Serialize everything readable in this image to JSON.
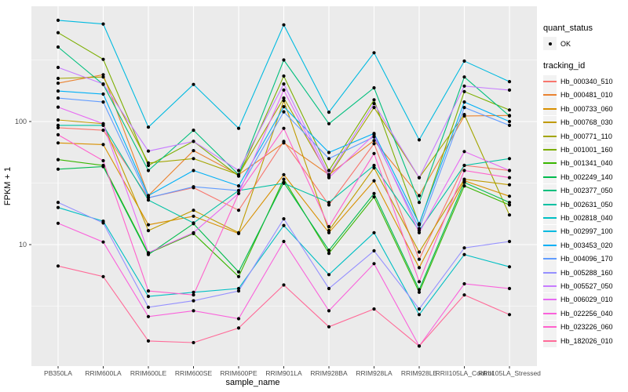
{
  "legend": {
    "quant_status_title": "quant_status",
    "quant_status_items": [
      {
        "label": "OK",
        "marker": "black-point"
      }
    ],
    "tracking_title": "tracking_id"
  },
  "style": {
    "panel_bg": "#EBEBEB",
    "grid_color": "#FFFFFF",
    "tick_label_color": "#4D4D4D",
    "axis_title_color": "#000000",
    "point_color": "#000000",
    "legend_key_bg": "#F2F2F2"
  },
  "chart_data": {
    "type": "line",
    "title": "",
    "xlabel": "sample_name",
    "ylabel": "FPKM + 1",
    "y_scale": "log10",
    "ylim": [
      1.03,
      863
    ],
    "y_major_ticks": [
      10,
      100
    ],
    "y_minor_gridlines": [
      3.162,
      31.62,
      316.2
    ],
    "grid": "on",
    "legend_position": "right",
    "marker": "black-point",
    "categories": [
      "PB350LA",
      "RRIM600LA",
      "RRIM600LE",
      "RRIM600SE",
      "RRIM600PE",
      "RRIM901LA",
      "RRIM928BA",
      "RRIM928LA",
      "RRIM928LE",
      "RRII105LA_Control",
      "RRII105LA_Stressed"
    ],
    "series": [
      {
        "name": "Hb_000340_510",
        "color": "#F8766D",
        "values": [
          89,
          85,
          24,
          29,
          19,
          69,
          21,
          66,
          7.6,
          44,
          40
        ]
      },
      {
        "name": "Hb_000481_010",
        "color": "#EA8331",
        "values": [
          205,
          240,
          25,
          58,
          37,
          67,
          37,
          70,
          25,
          111,
          112
        ]
      },
      {
        "name": "Hb_000733_060",
        "color": "#D89000",
        "values": [
          67,
          65,
          14.5,
          17,
          12.3,
          37,
          12.5,
          33,
          6.5,
          33,
          24.7
        ]
      },
      {
        "name": "Hb_000768_030",
        "color": "#C09B00",
        "values": [
          103,
          96,
          13,
          19,
          12.5,
          148,
          13,
          42,
          8.7,
          34,
          30.6
        ]
      },
      {
        "name": "Hb_000771_110",
        "color": "#A3A500",
        "values": [
          224,
          230,
          46,
          50,
          37,
          155,
          36,
          130,
          35,
          114,
          17.4
        ]
      },
      {
        "name": "Hb_001001_160",
        "color": "#7CAE00",
        "values": [
          527,
          320,
          44,
          69,
          36,
          234,
          40,
          150,
          14.5,
          175,
          124
        ]
      },
      {
        "name": "Hb_001341_040",
        "color": "#39B600",
        "values": [
          49,
          44,
          8.5,
          12.3,
          5.5,
          34,
          8.5,
          24.4,
          4.1,
          30,
          21
        ]
      },
      {
        "name": "Hb_002249_140",
        "color": "#00BB4E",
        "values": [
          41,
          43,
          8.3,
          14.8,
          6,
          32,
          9,
          26,
          4.3,
          32,
          22
        ]
      },
      {
        "name": "Hb_002377_050",
        "color": "#00BF7D",
        "values": [
          403,
          200,
          40,
          85,
          37,
          316,
          96,
          188,
          22,
          230,
          111
        ]
      },
      {
        "name": "Hb_002631_050",
        "color": "#00C1A3",
        "values": [
          93,
          93,
          23,
          15,
          27.5,
          31.5,
          22,
          44,
          13,
          44,
          50
        ]
      },
      {
        "name": "Hb_002818_040",
        "color": "#00BFC4",
        "values": [
          20,
          15.5,
          3.8,
          4.1,
          4.4,
          14.3,
          5.7,
          12.5,
          2.7,
          8.3,
          6.6
        ]
      },
      {
        "name": "Hb_002997_100",
        "color": "#00BAE0",
        "values": [
          664,
          620,
          90,
          200,
          88,
          610,
          119,
          362,
          71,
          310,
          211
        ]
      },
      {
        "name": "Hb_003453_020",
        "color": "#00B0F6",
        "values": [
          177,
          167,
          25,
          40,
          30,
          132,
          56,
          80,
          14.8,
          144,
          100
        ]
      },
      {
        "name": "Hb_004096_170",
        "color": "#619CFF",
        "values": [
          155,
          144,
          24,
          29.5,
          27.5,
          120,
          50,
          75,
          13.5,
          130,
          93
        ]
      },
      {
        "name": "Hb_005288_160",
        "color": "#9590FF",
        "values": [
          22,
          15,
          3.1,
          3.5,
          4.2,
          16.2,
          4.4,
          8.9,
          3,
          9.4,
          10.6
        ]
      },
      {
        "name": "Hb_005527_050",
        "color": "#C77CFF",
        "values": [
          275,
          202,
          57.5,
          69,
          40,
          202,
          37,
          140,
          35,
          194,
          180
        ]
      },
      {
        "name": "Hb_006029_010",
        "color": "#E76BF3",
        "values": [
          131,
          96,
          8.6,
          12.5,
          26,
          180,
          35,
          78,
          12.5,
          57,
          40
        ]
      },
      {
        "name": "Hb_022256_040",
        "color": "#FA62DB",
        "values": [
          14.9,
          10.5,
          2.6,
          2.9,
          2.5,
          10.6,
          2.9,
          7,
          1.5,
          4.8,
          4.4
        ]
      },
      {
        "name": "Hb_023226_060",
        "color": "#FF61CC",
        "values": [
          78,
          48,
          4.2,
          3.9,
          26,
          88,
          14,
          55,
          5,
          40,
          35
        ]
      },
      {
        "name": "Hb_182026_010",
        "color": "#FF6A98",
        "values": [
          6.7,
          5.5,
          1.65,
          1.6,
          2.1,
          4.7,
          2.15,
          3,
          1.5,
          3.9,
          2.7
        ]
      }
    ]
  }
}
